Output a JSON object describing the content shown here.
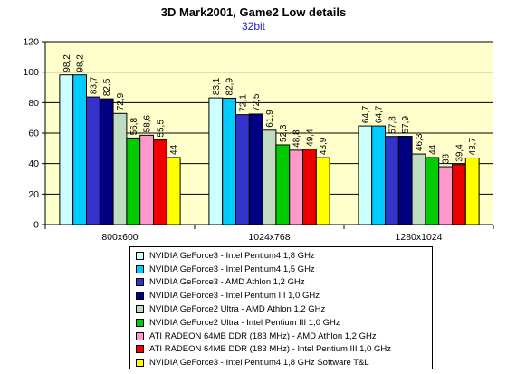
{
  "chart_data": {
    "type": "bar",
    "title": "3D Mark2001, Game2 Low details",
    "subtitle": "32bit",
    "xlabel": "",
    "ylabel": "",
    "ylim": [
      0,
      120
    ],
    "yticks": [
      0,
      20,
      40,
      60,
      80,
      100,
      120
    ],
    "grid": true,
    "legend_position": "bottom",
    "categories": [
      "800x600",
      "1024x768",
      "1280x1024"
    ],
    "series": [
      {
        "name": "NVIDIA GeForce3 - Intel Pentium4 1,8 GHz",
        "color": "#ccffff",
        "values": [
          98.2,
          83.1,
          64.7
        ],
        "labels": [
          "98,2",
          "83,1",
          "64,7"
        ]
      },
      {
        "name": "NVIDIA GeForce3 - Intel Pentium4 1,5 GHz",
        "color": "#00ccff",
        "values": [
          98.2,
          82.9,
          64.7
        ],
        "labels": [
          "98,2",
          "82,9",
          "64,7"
        ]
      },
      {
        "name": "NVIDIA GeForce3 - AMD Athlon 1,2 GHz",
        "color": "#3333cc",
        "values": [
          83.7,
          72.1,
          57.8
        ],
        "labels": [
          "83,7",
          "72,1",
          "57,8"
        ]
      },
      {
        "name": "NVIDIA GeForce3 - Intel Pentium III 1,0 GHz",
        "color": "#000080",
        "values": [
          82.5,
          72.5,
          57.9
        ],
        "labels": [
          "82,5",
          "72,5",
          "57,9"
        ]
      },
      {
        "name": "NVIDIA GeForce2 Ultra - AMD Athlon 1,2 GHz",
        "color": "#c0dcc0",
        "values": [
          72.9,
          61.9,
          46.3
        ],
        "labels": [
          "72,9",
          "61,9",
          "46,3"
        ]
      },
      {
        "name": "NVIDIA GeForce2 Ultra - Intel Pentium III 1,0 GHz",
        "color": "#00cc00",
        "values": [
          56.8,
          52.3,
          44
        ],
        "labels": [
          "56,8",
          "52,3",
          "44"
        ]
      },
      {
        "name": "ATI RADEON 64MB DDR (183 MHz) - AMD Athlon 1,2 GHz",
        "color": "#ff99cc",
        "values": [
          58.6,
          48.8,
          38
        ],
        "labels": [
          "58,6",
          "48,8",
          "38"
        ]
      },
      {
        "name": "ATI RADEON 64MB DDR (183 MHz) - Intel Pentium III 1,0 GHz",
        "color": "#ee0000",
        "values": [
          55.5,
          49.4,
          39.4
        ],
        "labels": [
          "55,5",
          "49,4",
          "39,4"
        ]
      },
      {
        "name": "NVIDIA GeForce3 - Intel Pentium4 1,8 GHz Software T&L",
        "color": "#ffff00",
        "values": [
          44,
          43.9,
          43.7
        ],
        "labels": [
          "44",
          "43,9",
          "43,7"
        ]
      }
    ]
  }
}
